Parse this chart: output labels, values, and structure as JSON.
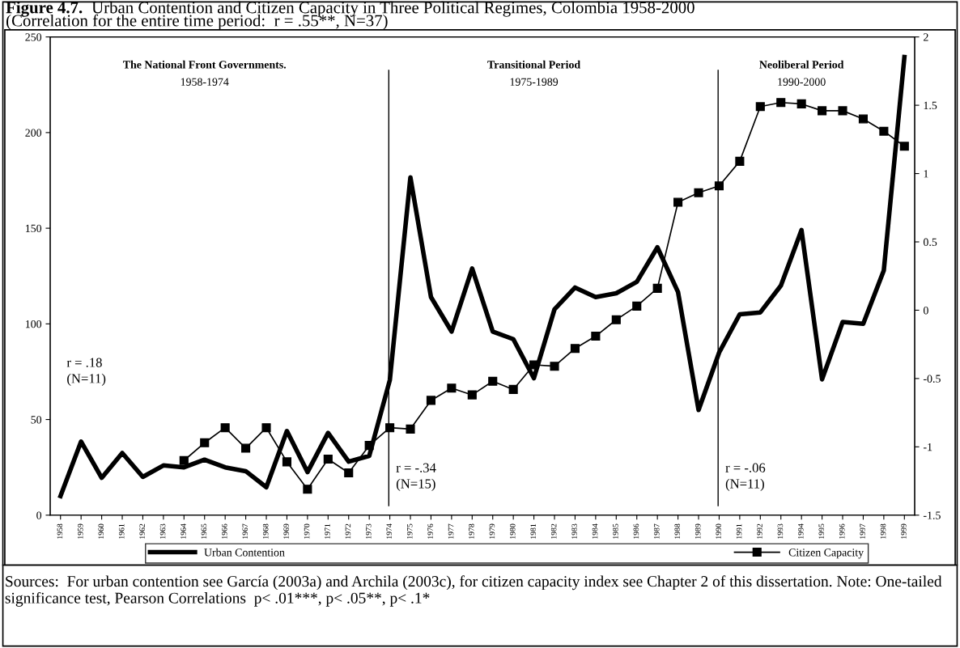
{
  "chart_data": {
    "type": "line",
    "title": "Figure 4.7. Urban Contention and Citizen Capacity in Three Political Regimes, Colombia 1958-2000",
    "subtitle": "(Correlation for the entire time period:  r = .55**, N=37)",
    "categories": [
      "1958",
      "1959",
      "1960",
      "1961",
      "1962",
      "1963",
      "1964",
      "1965",
      "1966",
      "1967",
      "1968",
      "1969",
      "1970",
      "1971",
      "1972",
      "1973",
      "1974",
      "1975",
      "1976",
      "1977",
      "1978",
      "1979",
      "1980",
      "1981",
      "1982",
      "1983",
      "1984",
      "1985",
      "1986",
      "1987",
      "1988",
      "1989",
      "1990",
      "1991",
      "1992",
      "1993",
      "1994",
      "1995",
      "1996",
      "1997",
      "1998",
      "1999"
    ],
    "series": [
      {
        "name": "Urban Contention",
        "color": "#000000",
        "marker": "none",
        "values": [
          10,
          38.5,
          19.5,
          32.5,
          20,
          26,
          25,
          29,
          25,
          23,
          14.6,
          44,
          22.5,
          43,
          28,
          31,
          70.6,
          176.6,
          114,
          96,
          129,
          96,
          92,
          71.6,
          107.6,
          119,
          114,
          116,
          122,
          140,
          116.7,
          55,
          85,
          105,
          106,
          120,
          149,
          71,
          101,
          100,
          128,
          239.5
        ]
      },
      {
        "name": "Citizen Capacity",
        "color": "#000000",
        "marker": "square",
        "axis": "y2",
        "values": [
          null,
          null,
          null,
          null,
          null,
          null,
          -1.1,
          -0.97,
          -0.86,
          -1.01,
          -0.86,
          -1.11,
          -1.31,
          -1.09,
          -1.19,
          -0.99,
          -0.86,
          -0.87,
          -0.66,
          -0.57,
          -0.62,
          -0.52,
          -0.58,
          -0.4,
          -0.41,
          -0.28,
          -0.19,
          -0.07,
          0.03,
          0.16,
          0.79,
          0.86,
          0.91,
          1.09,
          1.49,
          1.52,
          1.51,
          1.46,
          1.46,
          1.4,
          1.31,
          1.2
        ]
      }
    ],
    "ylim": [
      0,
      250
    ],
    "yticks": [
      0,
      50,
      100,
      150,
      200,
      250
    ],
    "y2lim": [
      -1.5,
      2
    ],
    "y2ticks": [
      -1.5,
      -1,
      -0.5,
      0,
      0.5,
      1,
      1.5,
      2
    ],
    "ref_lines": [
      {
        "axis": "x",
        "value": "1974",
        "color": "#000000"
      },
      {
        "axis": "x",
        "value": "1990",
        "color": "#000000"
      }
    ],
    "annotations": [
      "The National Front Governments.",
      "1958-1974",
      "Transitional Period",
      "1975-1989",
      "Neoliberal Period",
      "1990-2000",
      "r = .18\n(N=11)",
      "r = -.34\n(N=15)",
      "r = -.06\n(N=11)",
      "Sources:  For urban contention see García (2003a) and Archila (2003c), for citizen capacity index see Chapter 2 of this dissertation. Note: One-tailed significance test, Pearson Correlations  p< .01***, p< .05**, p< .1*"
    ],
    "grid": false,
    "legend": "bottom",
    "line_style": "solid"
  }
}
